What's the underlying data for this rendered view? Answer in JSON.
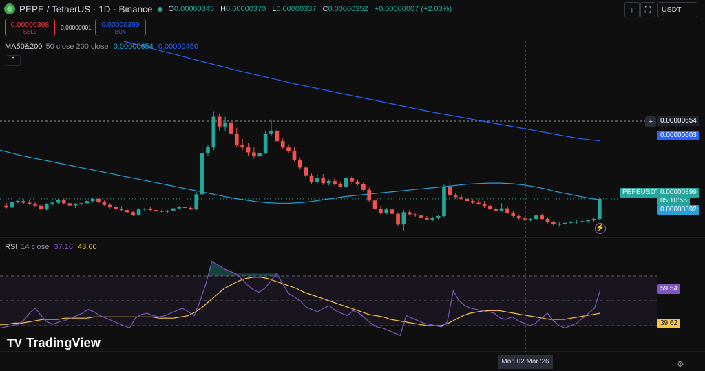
{
  "header": {
    "symbol": "PEPE / TetherUS · 1D · Binance",
    "ohlc": [
      {
        "key": "O",
        "value": "0.00000345"
      },
      {
        "key": "H",
        "value": "0.00000370"
      },
      {
        "key": "L",
        "value": "0.00000337"
      },
      {
        "key": "C",
        "value": "0.00000352"
      }
    ],
    "change": "+0.00000007 (+2.03%)"
  },
  "trade": {
    "sell_price": "0.00000398",
    "sell_label": "SELL",
    "spread": "0.00000001",
    "buy_price": "0.00000399",
    "buy_label": "BUY"
  },
  "toolbar": {
    "currency": "USDT",
    "down_icon": "arrow-down-icon",
    "fullscreen_icon": "fullscreen-icon"
  },
  "ma": {
    "label": "MA50&200",
    "params": "50 close 200 close",
    "value1": "0.00000654",
    "value2": "0.00000450"
  },
  "rsi": {
    "label": "RSI",
    "params": "14 close",
    "value1": "37.16",
    "value2": "43.60"
  },
  "price_tags": {
    "crosshair": "0.00000654",
    "ma200": "0.00000603",
    "symbol_tag": "PEPEUSDT",
    "last_price": "0.00000399",
    "countdown": "05:10:55",
    "ma50": "0.00000392",
    "rsi_value": "59.54",
    "rsi_ma": "39.62"
  },
  "date_label": "Mon 02 Mar '26",
  "watermark": "TradingView",
  "colors": {
    "up": "#26a69a",
    "down": "#ef5350",
    "ma50": "#2a9fd6",
    "ma200": "#2962ff",
    "rsi": "#7e57c2",
    "rsi_ma": "#f5c542"
  },
  "chart_data": {
    "type": "candlestick",
    "interval": "1D",
    "candles": [
      {
        "o": 3.72,
        "h": 3.82,
        "l": 3.62,
        "c": 3.65
      },
      {
        "o": 3.65,
        "h": 3.88,
        "l": 3.6,
        "c": 3.84
      },
      {
        "o": 3.84,
        "h": 3.92,
        "l": 3.8,
        "c": 3.88
      },
      {
        "o": 3.88,
        "h": 3.95,
        "l": 3.78,
        "c": 3.82
      },
      {
        "o": 3.82,
        "h": 3.9,
        "l": 3.74,
        "c": 3.78
      },
      {
        "o": 3.78,
        "h": 3.86,
        "l": 3.66,
        "c": 3.72
      },
      {
        "o": 3.72,
        "h": 3.78,
        "l": 3.55,
        "c": 3.58
      },
      {
        "o": 3.58,
        "h": 3.8,
        "l": 3.55,
        "c": 3.76
      },
      {
        "o": 3.76,
        "h": 3.86,
        "l": 3.7,
        "c": 3.82
      },
      {
        "o": 3.82,
        "h": 3.96,
        "l": 3.78,
        "c": 3.93
      },
      {
        "o": 3.93,
        "h": 3.97,
        "l": 3.75,
        "c": 3.8
      },
      {
        "o": 3.8,
        "h": 3.85,
        "l": 3.68,
        "c": 3.72
      },
      {
        "o": 3.72,
        "h": 3.8,
        "l": 3.64,
        "c": 3.76
      },
      {
        "o": 3.76,
        "h": 3.84,
        "l": 3.7,
        "c": 3.8
      },
      {
        "o": 3.8,
        "h": 3.92,
        "l": 3.76,
        "c": 3.88
      },
      {
        "o": 3.88,
        "h": 4.0,
        "l": 3.82,
        "c": 3.96
      },
      {
        "o": 3.96,
        "h": 4.0,
        "l": 3.8,
        "c": 3.84
      },
      {
        "o": 3.84,
        "h": 3.9,
        "l": 3.7,
        "c": 3.74
      },
      {
        "o": 3.74,
        "h": 3.8,
        "l": 3.62,
        "c": 3.66
      },
      {
        "o": 3.66,
        "h": 3.72,
        "l": 3.56,
        "c": 3.6
      },
      {
        "o": 3.6,
        "h": 3.68,
        "l": 3.52,
        "c": 3.56
      },
      {
        "o": 3.56,
        "h": 3.62,
        "l": 3.44,
        "c": 3.48
      },
      {
        "o": 3.48,
        "h": 3.52,
        "l": 3.34,
        "c": 3.38
      },
      {
        "o": 3.38,
        "h": 3.62,
        "l": 3.36,
        "c": 3.58
      },
      {
        "o": 3.58,
        "h": 3.64,
        "l": 3.54,
        "c": 3.6
      },
      {
        "o": 3.6,
        "h": 3.66,
        "l": 3.52,
        "c": 3.56
      },
      {
        "o": 3.56,
        "h": 3.6,
        "l": 3.5,
        "c": 3.52
      },
      {
        "o": 3.52,
        "h": 3.58,
        "l": 3.48,
        "c": 3.5
      },
      {
        "o": 3.5,
        "h": 3.56,
        "l": 3.46,
        "c": 3.54
      },
      {
        "o": 3.54,
        "h": 3.64,
        "l": 3.52,
        "c": 3.62
      },
      {
        "o": 3.62,
        "h": 3.7,
        "l": 3.58,
        "c": 3.66
      },
      {
        "o": 3.66,
        "h": 3.74,
        "l": 3.6,
        "c": 3.64
      },
      {
        "o": 3.64,
        "h": 3.68,
        "l": 3.56,
        "c": 3.58
      },
      {
        "o": 3.58,
        "h": 4.2,
        "l": 3.56,
        "c": 4.12
      },
      {
        "o": 4.12,
        "h": 5.9,
        "l": 4.1,
        "c": 5.6
      },
      {
        "o": 5.6,
        "h": 5.9,
        "l": 5.5,
        "c": 5.8
      },
      {
        "o": 5.8,
        "h": 7.1,
        "l": 5.7,
        "c": 6.9
      },
      {
        "o": 6.9,
        "h": 7.0,
        "l": 6.4,
        "c": 6.55
      },
      {
        "o": 6.55,
        "h": 6.9,
        "l": 6.4,
        "c": 6.7
      },
      {
        "o": 6.7,
        "h": 6.85,
        "l": 6.2,
        "c": 6.3
      },
      {
        "o": 6.3,
        "h": 6.5,
        "l": 5.8,
        "c": 5.9
      },
      {
        "o": 5.9,
        "h": 6.1,
        "l": 5.7,
        "c": 5.8
      },
      {
        "o": 5.8,
        "h": 5.95,
        "l": 5.5,
        "c": 5.62
      },
      {
        "o": 5.62,
        "h": 5.8,
        "l": 5.4,
        "c": 5.48
      },
      {
        "o": 5.48,
        "h": 5.66,
        "l": 5.42,
        "c": 5.6
      },
      {
        "o": 5.6,
        "h": 6.4,
        "l": 5.55,
        "c": 6.3
      },
      {
        "o": 6.3,
        "h": 6.8,
        "l": 6.2,
        "c": 6.4
      },
      {
        "o": 6.4,
        "h": 6.5,
        "l": 5.98,
        "c": 6.02
      },
      {
        "o": 6.02,
        "h": 6.12,
        "l": 5.74,
        "c": 5.8
      },
      {
        "o": 5.8,
        "h": 5.92,
        "l": 5.6,
        "c": 5.68
      },
      {
        "o": 5.68,
        "h": 5.8,
        "l": 5.3,
        "c": 5.36
      },
      {
        "o": 5.36,
        "h": 5.44,
        "l": 5.0,
        "c": 5.08
      },
      {
        "o": 5.08,
        "h": 5.14,
        "l": 4.72,
        "c": 4.8
      },
      {
        "o": 4.8,
        "h": 4.86,
        "l": 4.5,
        "c": 4.56
      },
      {
        "o": 4.56,
        "h": 4.84,
        "l": 4.5,
        "c": 4.7
      },
      {
        "o": 4.7,
        "h": 4.84,
        "l": 4.46,
        "c": 4.52
      },
      {
        "o": 4.52,
        "h": 4.66,
        "l": 4.44,
        "c": 4.6
      },
      {
        "o": 4.6,
        "h": 4.7,
        "l": 4.42,
        "c": 4.48
      },
      {
        "o": 4.48,
        "h": 4.56,
        "l": 4.36,
        "c": 4.4
      },
      {
        "o": 4.4,
        "h": 4.76,
        "l": 4.34,
        "c": 4.7
      },
      {
        "o": 4.7,
        "h": 4.8,
        "l": 4.5,
        "c": 4.58
      },
      {
        "o": 4.58,
        "h": 4.66,
        "l": 4.44,
        "c": 4.48
      },
      {
        "o": 4.48,
        "h": 4.56,
        "l": 4.22,
        "c": 4.28
      },
      {
        "o": 4.28,
        "h": 4.36,
        "l": 3.84,
        "c": 3.9
      },
      {
        "o": 3.9,
        "h": 4.02,
        "l": 3.54,
        "c": 3.6
      },
      {
        "o": 3.6,
        "h": 3.7,
        "l": 3.4,
        "c": 3.46
      },
      {
        "o": 3.46,
        "h": 3.64,
        "l": 3.4,
        "c": 3.58
      },
      {
        "o": 3.58,
        "h": 3.64,
        "l": 3.36,
        "c": 3.42
      },
      {
        "o": 3.42,
        "h": 3.48,
        "l": 2.98,
        "c": 3.04
      },
      {
        "o": 3.04,
        "h": 3.56,
        "l": 2.8,
        "c": 3.48
      },
      {
        "o": 3.48,
        "h": 3.56,
        "l": 3.36,
        "c": 3.4
      },
      {
        "o": 3.4,
        "h": 3.46,
        "l": 3.32,
        "c": 3.36
      },
      {
        "o": 3.36,
        "h": 3.42,
        "l": 3.24,
        "c": 3.28
      },
      {
        "o": 3.28,
        "h": 3.34,
        "l": 3.2,
        "c": 3.22
      },
      {
        "o": 3.22,
        "h": 3.32,
        "l": 3.16,
        "c": 3.28
      },
      {
        "o": 3.28,
        "h": 3.38,
        "l": 3.22,
        "c": 3.34
      },
      {
        "o": 3.34,
        "h": 4.5,
        "l": 3.3,
        "c": 4.4
      },
      {
        "o": 4.4,
        "h": 4.56,
        "l": 4.02,
        "c": 4.08
      },
      {
        "o": 4.08,
        "h": 4.16,
        "l": 3.96,
        "c": 4.02
      },
      {
        "o": 4.02,
        "h": 4.12,
        "l": 3.9,
        "c": 3.96
      },
      {
        "o": 3.96,
        "h": 4.04,
        "l": 3.84,
        "c": 3.88
      },
      {
        "o": 3.88,
        "h": 3.96,
        "l": 3.76,
        "c": 3.82
      },
      {
        "o": 3.82,
        "h": 3.94,
        "l": 3.74,
        "c": 3.78
      },
      {
        "o": 3.78,
        "h": 3.88,
        "l": 3.64,
        "c": 3.7
      },
      {
        "o": 3.7,
        "h": 3.76,
        "l": 3.56,
        "c": 3.6
      },
      {
        "o": 3.6,
        "h": 3.66,
        "l": 3.5,
        "c": 3.54
      },
      {
        "o": 3.54,
        "h": 3.8,
        "l": 3.5,
        "c": 3.62
      },
      {
        "o": 3.62,
        "h": 3.68,
        "l": 3.42,
        "c": 3.46
      },
      {
        "o": 3.46,
        "h": 3.52,
        "l": 3.3,
        "c": 3.34
      },
      {
        "o": 3.34,
        "h": 3.4,
        "l": 3.22,
        "c": 3.26
      },
      {
        "o": 3.26,
        "h": 3.32,
        "l": 3.18,
        "c": 3.22
      },
      {
        "o": 3.22,
        "h": 3.28,
        "l": 3.16,
        "c": 3.24
      },
      {
        "o": 3.24,
        "h": 3.4,
        "l": 3.2,
        "c": 3.36
      },
      {
        "o": 3.36,
        "h": 3.42,
        "l": 3.2,
        "c": 3.24
      },
      {
        "o": 3.24,
        "h": 3.3,
        "l": 3.08,
        "c": 3.12
      },
      {
        "o": 3.12,
        "h": 3.18,
        "l": 3.0,
        "c": 3.04
      },
      {
        "o": 3.04,
        "h": 3.12,
        "l": 2.96,
        "c": 3.06
      },
      {
        "o": 3.06,
        "h": 3.14,
        "l": 3.0,
        "c": 3.1
      },
      {
        "o": 3.1,
        "h": 3.18,
        "l": 3.04,
        "c": 3.12
      },
      {
        "o": 3.12,
        "h": 3.2,
        "l": 3.06,
        "c": 3.14
      },
      {
        "o": 3.14,
        "h": 3.26,
        "l": 3.1,
        "c": 3.16
      },
      {
        "o": 3.16,
        "h": 3.22,
        "l": 3.1,
        "c": 3.2
      },
      {
        "o": 3.2,
        "h": 3.3,
        "l": 3.14,
        "c": 3.24
      },
      {
        "o": 3.24,
        "h": 4.02,
        "l": 3.2,
        "c": 3.96
      }
    ],
    "ma50": [
      5.7,
      5.6,
      5.5,
      5.42,
      5.34,
      5.26,
      5.18,
      5.1,
      5.02,
      4.94,
      4.86,
      4.78,
      4.7,
      4.62,
      4.54,
      4.46,
      4.38,
      4.3,
      4.22,
      4.14,
      4.06,
      3.98,
      3.92,
      3.86,
      3.82,
      3.8,
      3.8,
      3.82,
      3.86,
      3.92,
      3.98,
      4.04,
      4.08,
      4.12,
      4.16,
      4.2,
      4.24,
      4.28,
      4.32,
      4.36,
      4.4,
      4.44,
      4.48,
      4.5,
      4.52,
      4.52,
      4.5,
      4.46,
      4.4,
      4.32,
      4.22,
      4.14,
      4.06,
      3.98,
      3.92
    ],
    "ma200": [
      9.6,
      9.4,
      9.2,
      9.0,
      8.8,
      8.6,
      8.42,
      8.24,
      8.06,
      7.9,
      7.74,
      7.58,
      7.42,
      7.26,
      7.1,
      6.96,
      6.82,
      6.68,
      6.54,
      6.4,
      6.26,
      6.12,
      6.03
    ],
    "rsi": [
      28,
      29,
      30,
      31,
      34,
      40,
      44,
      38,
      33,
      31,
      33,
      34,
      36,
      38,
      40,
      43,
      41,
      38,
      36,
      34,
      32,
      30,
      28,
      36,
      39,
      40,
      38,
      37,
      38,
      40,
      42,
      44,
      41,
      38,
      50,
      64,
      82,
      79,
      76,
      74,
      72,
      68,
      63,
      59,
      57,
      60,
      66,
      72,
      64,
      56,
      53,
      50,
      45,
      43,
      41,
      44,
      46,
      42,
      40,
      38,
      42,
      40,
      36,
      32,
      29,
      28,
      26,
      24,
      22,
      38,
      36,
      34,
      32,
      31,
      30,
      29,
      33,
      58,
      50,
      46,
      44,
      43,
      42,
      41,
      40,
      36,
      35,
      37,
      34,
      32,
      30,
      32,
      36,
      40,
      34,
      30,
      28,
      30,
      32,
      36,
      40,
      44,
      59
    ],
    "rsi_ma": [
      31,
      31,
      32,
      32,
      33,
      34,
      35,
      35,
      35,
      36,
      36,
      36,
      36,
      37,
      37,
      37,
      37,
      37,
      37,
      37,
      37,
      37,
      36,
      36,
      36,
      37,
      38,
      41,
      45,
      50,
      55,
      60,
      63,
      66,
      68,
      69,
      69,
      68,
      66,
      64,
      62,
      60,
      57,
      55,
      53,
      51,
      49,
      47,
      45,
      43,
      41,
      39,
      38,
      37,
      35,
      34,
      33,
      32,
      31,
      30,
      30,
      30,
      32,
      35,
      38,
      40,
      41,
      42,
      42,
      42,
      41,
      40,
      39,
      38,
      37,
      36,
      35,
      35,
      35,
      36,
      37,
      38,
      39,
      40
    ],
    "price_ylim": [
      2.6,
      9.6
    ],
    "rsi_ylim": [
      15,
      90
    ],
    "price_unit": "1e-6"
  }
}
